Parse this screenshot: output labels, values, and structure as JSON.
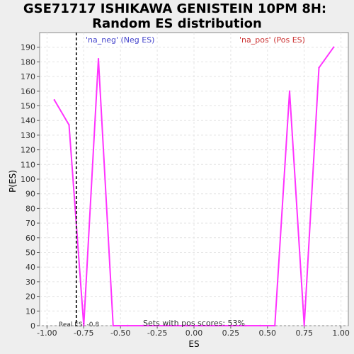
{
  "chart_data": {
    "type": "line",
    "title_line1": "GSE71717 ISHIKAWA GENISTEIN 10PM 8H:",
    "title_line2": "Random ES distribution",
    "xlabel": "ES",
    "ylabel": "P(ES)",
    "xlim": [
      -1.05,
      1.05
    ],
    "ylim": [
      0,
      200
    ],
    "x_ticks": [
      -1.0,
      -0.75,
      -0.5,
      -0.25,
      0.0,
      0.25,
      0.5,
      0.75,
      1.0
    ],
    "x_tick_labels": [
      "-1.00",
      "-0.75",
      "-0.50",
      "-0.25",
      "0.00",
      "0.25",
      "0.50",
      "0.75",
      "1.00"
    ],
    "y_ticks": [
      0,
      10,
      20,
      30,
      40,
      50,
      60,
      70,
      80,
      90,
      100,
      110,
      120,
      130,
      140,
      150,
      160,
      170,
      180,
      190
    ],
    "grid": true,
    "legend": [
      {
        "label": "'na_neg' (Neg ES)",
        "color": "#4444cc",
        "placement": "top-left"
      },
      {
        "label": "'na_pos' (Pos ES)",
        "color": "#cc3333",
        "placement": "top-right"
      }
    ],
    "line_color": "#ff33ff",
    "series": [
      {
        "x": [
          -0.95,
          -0.85,
          -0.75,
          -0.65,
          -0.55,
          -0.45,
          -0.35,
          -0.25,
          -0.15,
          -0.05,
          0.05,
          0.15,
          0.25,
          0.35,
          0.45,
          0.55,
          0.65,
          0.75,
          0.85,
          0.95
        ],
        "values": [
          154,
          137,
          0,
          182,
          0,
          0,
          0,
          0,
          0,
          0,
          0,
          0,
          0,
          0,
          0,
          0,
          160,
          0,
          176,
          190
        ]
      }
    ],
    "real_es": -0.8,
    "real_es_label": "Real ES: -0.8",
    "annotation": "Sets with pos scores: 53%"
  }
}
